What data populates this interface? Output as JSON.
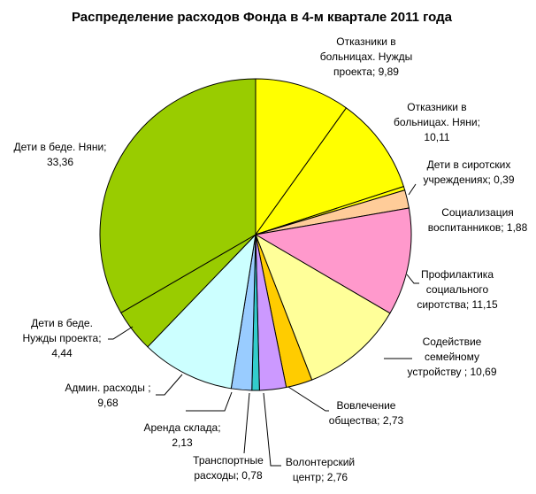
{
  "chart_data": {
    "type": "pie",
    "title": "Распределение расходов Фонда в 4-м квартале 2011 года",
    "slices": [
      {
        "label_lines": [
          "Отказники в",
          "больницах. Нужды",
          "проекта; 9,89"
        ],
        "value": 9.89,
        "color": "#ffff00"
      },
      {
        "label_lines": [
          "Отказники в",
          "больницах. Няни;",
          "10,11"
        ],
        "value": 10.11,
        "color": "#ffff00"
      },
      {
        "label_lines": [
          "Дети в сиротских",
          "учреждениях; 0,39"
        ],
        "value": 0.39,
        "color": "#ffff00"
      },
      {
        "label_lines": [
          "Социализация",
          "воспитанников; 1,88"
        ],
        "value": 1.88,
        "color": "#ffcc99"
      },
      {
        "label_lines": [
          "Профилактика",
          "социального",
          "сиротства; 11,15"
        ],
        "value": 11.15,
        "color": "#ff99cc"
      },
      {
        "label_lines": [
          "Содействие",
          "семейному",
          "устройству ; 10,69"
        ],
        "value": 10.69,
        "color": "#ffff99"
      },
      {
        "label_lines": [
          "Вовлечение",
          "общества; 2,73"
        ],
        "value": 2.73,
        "color": "#ffcc00"
      },
      {
        "label_lines": [
          "Волонтерский",
          "центр; 2,76"
        ],
        "value": 2.76,
        "color": "#cc99ff"
      },
      {
        "label_lines": [
          "Транспортные",
          "расходы; 0,78"
        ],
        "value": 0.78,
        "color": "#33cccc"
      },
      {
        "label_lines": [
          "Аренда склада;",
          "2,13"
        ],
        "value": 2.13,
        "color": "#99ccff"
      },
      {
        "label_lines": [
          "Админ. расходы ;",
          "9,68"
        ],
        "value": 9.68,
        "color": "#ccffff"
      },
      {
        "label_lines": [
          "Дети в беде.",
          "Нужды проекта;",
          "4,44"
        ],
        "value": 4.44,
        "color": "#99cc00"
      },
      {
        "label_lines": [
          "Дети в беде. Няни;",
          "33,36"
        ],
        "value": 33.36,
        "color": "#99cc00"
      }
    ]
  }
}
